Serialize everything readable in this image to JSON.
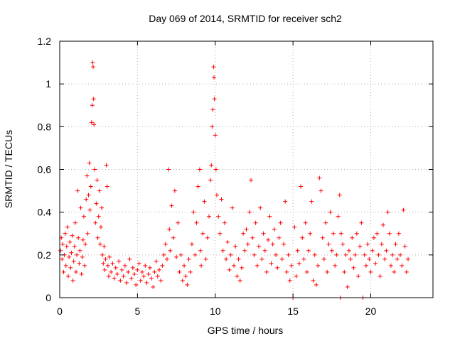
{
  "chart_data": {
    "type": "scatter",
    "title": "Day 069 of 2014, SRMTID for receiver sch2",
    "xlabel": "GPS time / hours",
    "ylabel": "SRMTID / TECUs",
    "xlim": [
      0,
      24
    ],
    "ylim": [
      0,
      1.2
    ],
    "xticks": [
      0,
      5,
      10,
      15,
      20
    ],
    "xtick_labels": [
      "0",
      "5",
      "10",
      "15",
      "20"
    ],
    "yticks": [
      0,
      0.2,
      0.4,
      0.6,
      0.8,
      1,
      1.2
    ],
    "ytick_labels": [
      "0",
      "0.2",
      "0.4",
      "0.6",
      "0.8",
      "1",
      "1.2"
    ],
    "grid": true,
    "marker": "+",
    "series": [
      {
        "name": "SRMTID",
        "color": "#ff0000",
        "points": [
          [
            0.05,
            0.22
          ],
          [
            0.1,
            0.28
          ],
          [
            0.15,
            0.18
          ],
          [
            0.2,
            0.25
          ],
          [
            0.25,
            0.12
          ],
          [
            0.3,
            0.2
          ],
          [
            0.35,
            0.3
          ],
          [
            0.4,
            0.15
          ],
          [
            0.45,
            0.24
          ],
          [
            0.5,
            0.33
          ],
          [
            0.55,
            0.1
          ],
          [
            0.6,
            0.19
          ],
          [
            0.65,
            0.26
          ],
          [
            0.7,
            0.14
          ],
          [
            0.75,
            0.21
          ],
          [
            0.8,
            0.29
          ],
          [
            0.85,
            0.08
          ],
          [
            0.9,
            0.17
          ],
          [
            0.95,
            0.24
          ],
          [
            1.0,
            0.35
          ],
          [
            1.05,
            0.12
          ],
          [
            1.1,
            0.2
          ],
          [
            1.15,
            0.5
          ],
          [
            1.2,
            0.28
          ],
          [
            1.25,
            0.16
          ],
          [
            1.3,
            0.22
          ],
          [
            1.35,
            0.42
          ],
          [
            1.4,
            0.11
          ],
          [
            1.45,
            0.19
          ],
          [
            1.5,
            0.27
          ],
          [
            1.55,
            0.38
          ],
          [
            1.6,
            0.15
          ],
          [
            1.65,
            0.25
          ],
          [
            1.7,
            0.46
          ],
          [
            1.75,
            0.57
          ],
          [
            1.8,
            0.3
          ],
          [
            1.85,
            0.48
          ],
          [
            1.9,
            0.63
          ],
          [
            1.95,
            0.41
          ],
          [
            2.0,
            0.52
          ],
          [
            2.05,
            0.82
          ],
          [
            2.1,
            0.9
          ],
          [
            2.12,
            1.1
          ],
          [
            2.15,
            1.08
          ],
          [
            2.18,
            0.93
          ],
          [
            2.2,
            0.81
          ],
          [
            2.25,
            0.6
          ],
          [
            2.3,
            0.35
          ],
          [
            2.35,
            0.44
          ],
          [
            2.4,
            0.55
          ],
          [
            2.45,
            0.28
          ],
          [
            2.5,
            0.38
          ],
          [
            2.55,
            0.5
          ],
          [
            2.6,
            0.25
          ],
          [
            2.65,
            0.33
          ],
          [
            2.7,
            0.42
          ],
          [
            2.75,
            0.2
          ],
          [
            2.8,
            0.16
          ],
          [
            2.85,
            0.24
          ],
          [
            2.9,
            0.13
          ],
          [
            2.95,
            0.18
          ],
          [
            3.0,
            0.62
          ],
          [
            3.05,
            0.52
          ],
          [
            3.1,
            0.15
          ],
          [
            3.15,
            0.1
          ],
          [
            3.2,
            0.19
          ],
          [
            3.3,
            0.12
          ],
          [
            3.4,
            0.16
          ],
          [
            3.5,
            0.09
          ],
          [
            3.6,
            0.14
          ],
          [
            3.7,
            0.11
          ],
          [
            3.8,
            0.17
          ],
          [
            3.9,
            0.08
          ],
          [
            4.0,
            0.13
          ],
          [
            4.1,
            0.1
          ],
          [
            4.2,
            0.15
          ],
          [
            4.3,
            0.07
          ],
          [
            4.4,
            0.12
          ],
          [
            4.5,
            0.18
          ],
          [
            4.6,
            0.09
          ],
          [
            4.7,
            0.14
          ],
          [
            4.8,
            0.11
          ],
          [
            4.9,
            0.06
          ],
          [
            5.0,
            0.13
          ],
          [
            5.1,
            0.16
          ],
          [
            5.2,
            0.08
          ],
          [
            5.3,
            0.12
          ],
          [
            5.4,
            0.1
          ],
          [
            5.5,
            0.15
          ],
          [
            5.6,
            0.07
          ],
          [
            5.7,
            0.11
          ],
          [
            5.8,
            0.14
          ],
          [
            5.9,
            0.09
          ],
          [
            6.0,
            0.05
          ],
          [
            6.1,
            0.12
          ],
          [
            6.2,
            0.17
          ],
          [
            6.3,
            0.1
          ],
          [
            6.4,
            0.13
          ],
          [
            6.5,
            0.08
          ],
          [
            6.6,
            0.15
          ],
          [
            6.7,
            0.2
          ],
          [
            6.8,
            0.25
          ],
          [
            6.9,
            0.18
          ],
          [
            7.0,
            0.6
          ],
          [
            7.05,
            0.32
          ],
          [
            7.1,
            0.22
          ],
          [
            7.2,
            0.43
          ],
          [
            7.3,
            0.28
          ],
          [
            7.4,
            0.5
          ],
          [
            7.5,
            0.19
          ],
          [
            7.6,
            0.35
          ],
          [
            7.7,
            0.12
          ],
          [
            7.8,
            0.2
          ],
          [
            7.9,
            0.08
          ],
          [
            8.0,
            0.15
          ],
          [
            8.1,
            0.1
          ],
          [
            8.2,
            0.06
          ],
          [
            8.3,
            0.18
          ],
          [
            8.4,
            0.12
          ],
          [
            8.5,
            0.25
          ],
          [
            8.6,
            0.4
          ],
          [
            8.7,
            0.2
          ],
          [
            8.8,
            0.35
          ],
          [
            8.9,
            0.52
          ],
          [
            9.0,
            0.6
          ],
          [
            9.05,
            0.22
          ],
          [
            9.1,
            0.15
          ],
          [
            9.2,
            0.3
          ],
          [
            9.3,
            0.45
          ],
          [
            9.4,
            0.18
          ],
          [
            9.5,
            0.28
          ],
          [
            9.6,
            0.38
          ],
          [
            9.7,
            0.55
          ],
          [
            9.75,
            0.62
          ],
          [
            9.8,
            0.8
          ],
          [
            9.85,
            0.88
          ],
          [
            9.9,
            1.08
          ],
          [
            9.92,
            1.03
          ],
          [
            9.95,
            0.93
          ],
          [
            10.0,
            0.76
          ],
          [
            10.05,
            0.6
          ],
          [
            10.1,
            0.48
          ],
          [
            10.2,
            0.38
          ],
          [
            10.3,
            0.3
          ],
          [
            10.4,
            0.46
          ],
          [
            10.5,
            0.22
          ],
          [
            10.6,
            0.35
          ],
          [
            10.7,
            0.18
          ],
          [
            10.8,
            0.26
          ],
          [
            10.9,
            0.13
          ],
          [
            11.0,
            0.2
          ],
          [
            11.1,
            0.42
          ],
          [
            11.2,
            0.15
          ],
          [
            11.3,
            0.24
          ],
          [
            11.4,
            0.1
          ],
          [
            11.5,
            0.18
          ],
          [
            11.6,
            0.08
          ],
          [
            11.7,
            0.14
          ],
          [
            11.8,
            0.3
          ],
          [
            11.9,
            0.22
          ],
          [
            12.0,
            0.32
          ],
          [
            12.1,
            0.25
          ],
          [
            12.2,
            0.4
          ],
          [
            12.3,
            0.55
          ],
          [
            12.4,
            0.28
          ],
          [
            12.5,
            0.2
          ],
          [
            12.6,
            0.35
          ],
          [
            12.7,
            0.15
          ],
          [
            12.8,
            0.24
          ],
          [
            12.9,
            0.42
          ],
          [
            13.0,
            0.18
          ],
          [
            13.1,
            0.3
          ],
          [
            13.2,
            0.22
          ],
          [
            13.3,
            0.12
          ],
          [
            13.4,
            0.27
          ],
          [
            13.5,
            0.38
          ],
          [
            13.6,
            0.16
          ],
          [
            13.7,
            0.25
          ],
          [
            13.8,
            0.32
          ],
          [
            13.9,
            0.2
          ],
          [
            14.0,
            0.14
          ],
          [
            14.1,
            0.28
          ],
          [
            14.2,
            0.35
          ],
          [
            14.3,
            0.18
          ],
          [
            14.4,
            0.25
          ],
          [
            14.5,
            0.45
          ],
          [
            14.6,
            0.12
          ],
          [
            14.7,
            0.2
          ],
          [
            14.8,
            0.08
          ],
          [
            14.9,
            0.15
          ],
          [
            15.0,
            0.0
          ],
          [
            15.1,
            0.33
          ],
          [
            15.2,
            0.1
          ],
          [
            15.3,
            0.22
          ],
          [
            15.4,
            0.16
          ],
          [
            15.5,
            0.52
          ],
          [
            15.6,
            0.28
          ],
          [
            15.7,
            0.18
          ],
          [
            15.8,
            0.35
          ],
          [
            15.9,
            0.12
          ],
          [
            16.0,
            0.22
          ],
          [
            16.1,
            0.3
          ],
          [
            16.2,
            0.45
          ],
          [
            16.3,
            0.08
          ],
          [
            16.4,
            0.2
          ],
          [
            16.5,
            0.06
          ],
          [
            16.6,
            0.15
          ],
          [
            16.7,
            0.56
          ],
          [
            16.8,
            0.5
          ],
          [
            16.9,
            0.28
          ],
          [
            17.0,
            0.18
          ],
          [
            17.1,
            0.35
          ],
          [
            17.2,
            0.12
          ],
          [
            17.3,
            0.25
          ],
          [
            17.4,
            0.4
          ],
          [
            17.5,
            0.22
          ],
          [
            17.6,
            0.3
          ],
          [
            17.7,
            0.15
          ],
          [
            17.8,
            0.2
          ],
          [
            17.9,
            0.38
          ],
          [
            18.0,
            0.48
          ],
          [
            18.05,
            0.0
          ],
          [
            18.1,
            0.3
          ],
          [
            18.2,
            0.25
          ],
          [
            18.3,
            0.12
          ],
          [
            18.4,
            0.2
          ],
          [
            18.5,
            0.05
          ],
          [
            18.6,
            0.22
          ],
          [
            18.7,
            0.18
          ],
          [
            18.8,
            0.28
          ],
          [
            18.9,
            0.14
          ],
          [
            19.0,
            0.2
          ],
          [
            19.1,
            0.3
          ],
          [
            19.2,
            0.1
          ],
          [
            19.3,
            0.24
          ],
          [
            19.4,
            0.35
          ],
          [
            19.5,
            0.0
          ],
          [
            19.6,
            0.2
          ],
          [
            19.7,
            0.15
          ],
          [
            19.8,
            0.25
          ],
          [
            19.9,
            0.18
          ],
          [
            20.0,
            0.12
          ],
          [
            20.1,
            0.22
          ],
          [
            20.2,
            0.28
          ],
          [
            20.3,
            0.16
          ],
          [
            20.4,
            0.3
          ],
          [
            20.5,
            0.2
          ],
          [
            20.6,
            0.1
          ],
          [
            20.7,
            0.25
          ],
          [
            20.8,
            0.34
          ],
          [
            20.9,
            0.18
          ],
          [
            21.0,
            0.22
          ],
          [
            21.1,
            0.4
          ],
          [
            21.2,
            0.3
          ],
          [
            21.3,
            0.15
          ],
          [
            21.4,
            0.2
          ],
          [
            21.5,
            0.12
          ],
          [
            21.6,
            0.25
          ],
          [
            21.7,
            0.18
          ],
          [
            21.8,
            0.3
          ],
          [
            21.9,
            0.2
          ],
          [
            22.0,
            0.15
          ],
          [
            22.1,
            0.41
          ],
          [
            22.2,
            0.24
          ],
          [
            22.3,
            0.12
          ],
          [
            22.4,
            0.18
          ]
        ]
      }
    ]
  }
}
